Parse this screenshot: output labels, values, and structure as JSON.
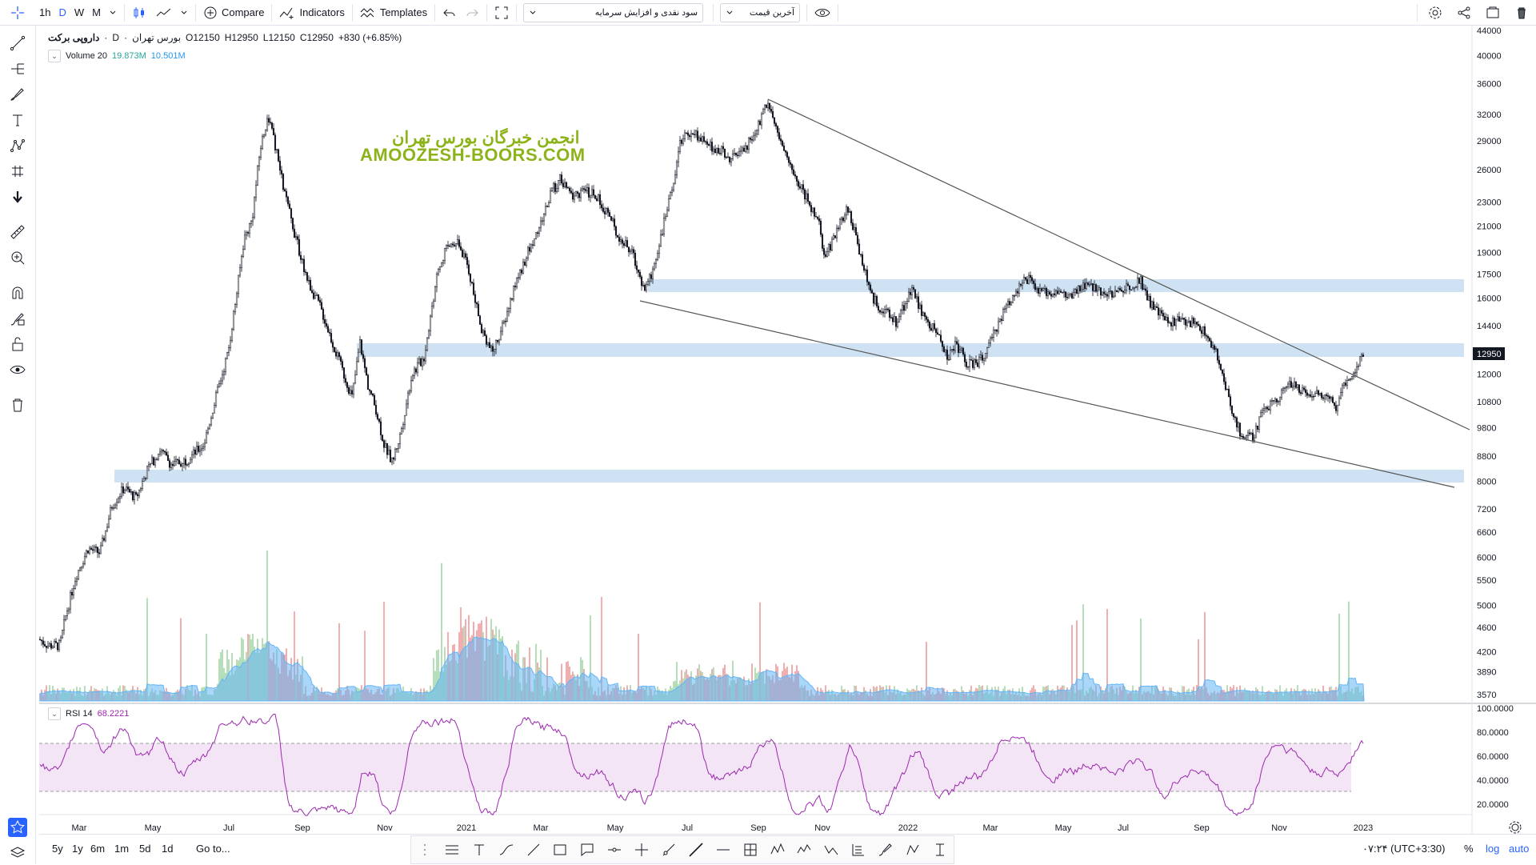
{
  "toolbar": {
    "intervals": [
      "1h",
      "D",
      "W",
      "M"
    ],
    "compare": "Compare",
    "indicators": "Indicators",
    "templates": "Templates",
    "select_adjust": "سود نقدی و افزایش سرمایه",
    "select_price": "آخرین قیمت"
  },
  "legend": {
    "symbol": "داروپی برکت",
    "exchange": "بورس تهران",
    "interval": "D",
    "open": "O12150",
    "high": "H12950",
    "low": "L12150",
    "close": "C12950",
    "change": "+830 (+6.85%)",
    "volume_label": "Volume 20",
    "volume_value1": "19.873M",
    "volume_value2": "10.501M",
    "rsi_label": "RSI 14",
    "rsi_value": "68.2221"
  },
  "watermark": {
    "line1": "انجمن خبرگان بورس تهران",
    "line2": "AMOOZESH-BOORS.COM"
  },
  "price_axis": [
    "44000",
    "40000",
    "36000",
    "32000",
    "29000",
    "26000",
    "23000",
    "21000",
    "19000",
    "17500",
    "16000",
    "14400",
    "12950",
    "12000",
    "10800",
    "9800",
    "8800",
    "8000",
    "7200",
    "6600",
    "6000",
    "5500",
    "5000",
    "4600",
    "4200",
    "3890",
    "3570"
  ],
  "last_price": "12950",
  "rsi_axis": [
    "100.0000",
    "80.0000",
    "60.0000",
    "40.0000",
    "20.0000"
  ],
  "time_axis": [
    "Mar",
    "May",
    "Jul",
    "Sep",
    "Nov",
    "2021",
    "Mar",
    "May",
    "Jul",
    "Sep",
    "Nov",
    "2022",
    "Mar",
    "May",
    "Jul",
    "Sep",
    "Nov",
    "2023"
  ],
  "bottom": {
    "ranges": [
      "5y",
      "1y",
      "6m",
      "1m",
      "5d",
      "1d"
    ],
    "goto": "Go to...",
    "time": "۰۷:۲۴ (UTC+3:30)",
    "pct": "%",
    "log": "log",
    "auto": "auto"
  },
  "colors": {
    "accent": "#2962ff",
    "zone": "#cfe2f3",
    "rsi_line": "#9c27b0",
    "rsi_band": "#f3e5f5",
    "vol_up": "#a5d6a7",
    "vol_down": "#ef9a9a",
    "vol_ma": "#64b5f6",
    "watermark": "#8db31a"
  },
  "icons": {
    "left_tools": [
      "crosshair-icon",
      "trend-line-icon",
      "pitchfork-icon",
      "brush-icon",
      "text-icon",
      "pattern-icon",
      "prediction-icon",
      "arrow-down-icon",
      "ruler-icon",
      "zoom-icon",
      "magnet-icon",
      "lock-drawing-icon",
      "lock-icon",
      "eye-icon",
      "trash-icon",
      "favorites-icon",
      "layers-icon"
    ]
  }
}
